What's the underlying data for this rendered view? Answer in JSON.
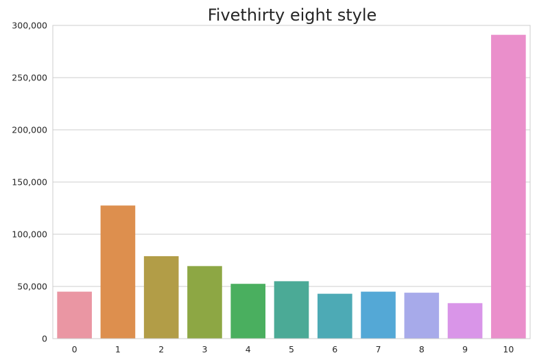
{
  "chart_data": {
    "type": "bar",
    "title": "Fivethirty eight style",
    "xlabel": "",
    "ylabel": "",
    "categories": [
      "0",
      "1",
      "2",
      "3",
      "4",
      "5",
      "6",
      "7",
      "8",
      "9",
      "10"
    ],
    "values": [
      45000,
      127500,
      79000,
      69500,
      52500,
      55000,
      43000,
      45000,
      44000,
      34000,
      291000
    ],
    "colors": [
      "#ea96a3",
      "#dd8f4e",
      "#b29d47",
      "#8da744",
      "#4aaf5f",
      "#4baa96",
      "#4daab5",
      "#54a8d6",
      "#a7aaea",
      "#d995e8",
      "#ea8fcb"
    ],
    "ylim": [
      0,
      300000
    ],
    "yticks": [
      0,
      50000,
      100000,
      150000,
      200000,
      250000,
      300000
    ],
    "ytick_labels": [
      "0",
      "50,000",
      "100,000",
      "150,000",
      "200,000",
      "250,000",
      "300,000"
    ],
    "grid": true,
    "legend": "none"
  }
}
